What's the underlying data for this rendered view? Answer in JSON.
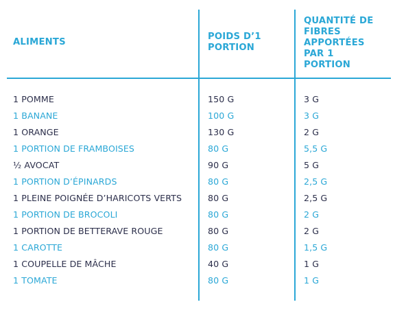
{
  "colors": {
    "accent": "#2aa7d6",
    "text": "#2b2e4a"
  },
  "headers": {
    "col1": "ALIMENTS",
    "col2": [
      "POIDS D’1",
      "PORTION"
    ],
    "col3": [
      "QUANTITÉ DE",
      "FIBRES",
      "APPORTÉES",
      "PAR 1",
      "PORTION"
    ]
  },
  "rows": [
    {
      "aliment": "1 POMME",
      "poids": "150 G",
      "fibres": "3 G"
    },
    {
      "aliment": "1 BANANE",
      "poids": "100 G",
      "fibres": "3 G"
    },
    {
      "aliment": "1 ORANGE",
      "poids": "130 G",
      "fibres": "2 G"
    },
    {
      "aliment": "1 PORTION DE FRAMBOISES",
      "poids": "80 G",
      "fibres": "5,5 G"
    },
    {
      "aliment": "½ AVOCAT",
      "poids": "90 G",
      "fibres": "5 G"
    },
    {
      "aliment": "1 PORTION D’ÉPINARDS",
      "poids": "80 G",
      "fibres": "2,5 G"
    },
    {
      "aliment": "1 PLEINE POIGNÉE D’HARICOTS VERTS",
      "poids": "80 G",
      "fibres": "2,5 G"
    },
    {
      "aliment": "1 PORTION DE BROCOLI",
      "poids": "80 G",
      "fibres": "2 G"
    },
    {
      "aliment": "1 PORTION DE BETTERAVE ROUGE",
      "poids": "80 G",
      "fibres": "2 G"
    },
    {
      "aliment": "1 CAROTTE",
      "poids": "80 G",
      "fibres": "1,5 G"
    },
    {
      "aliment": "1 COUPELLE DE MÂCHE",
      "poids": "40 G",
      "fibres": "1 G"
    },
    {
      "aliment": "1 TOMATE",
      "poids": "80 G",
      "fibres": "1 G"
    }
  ]
}
